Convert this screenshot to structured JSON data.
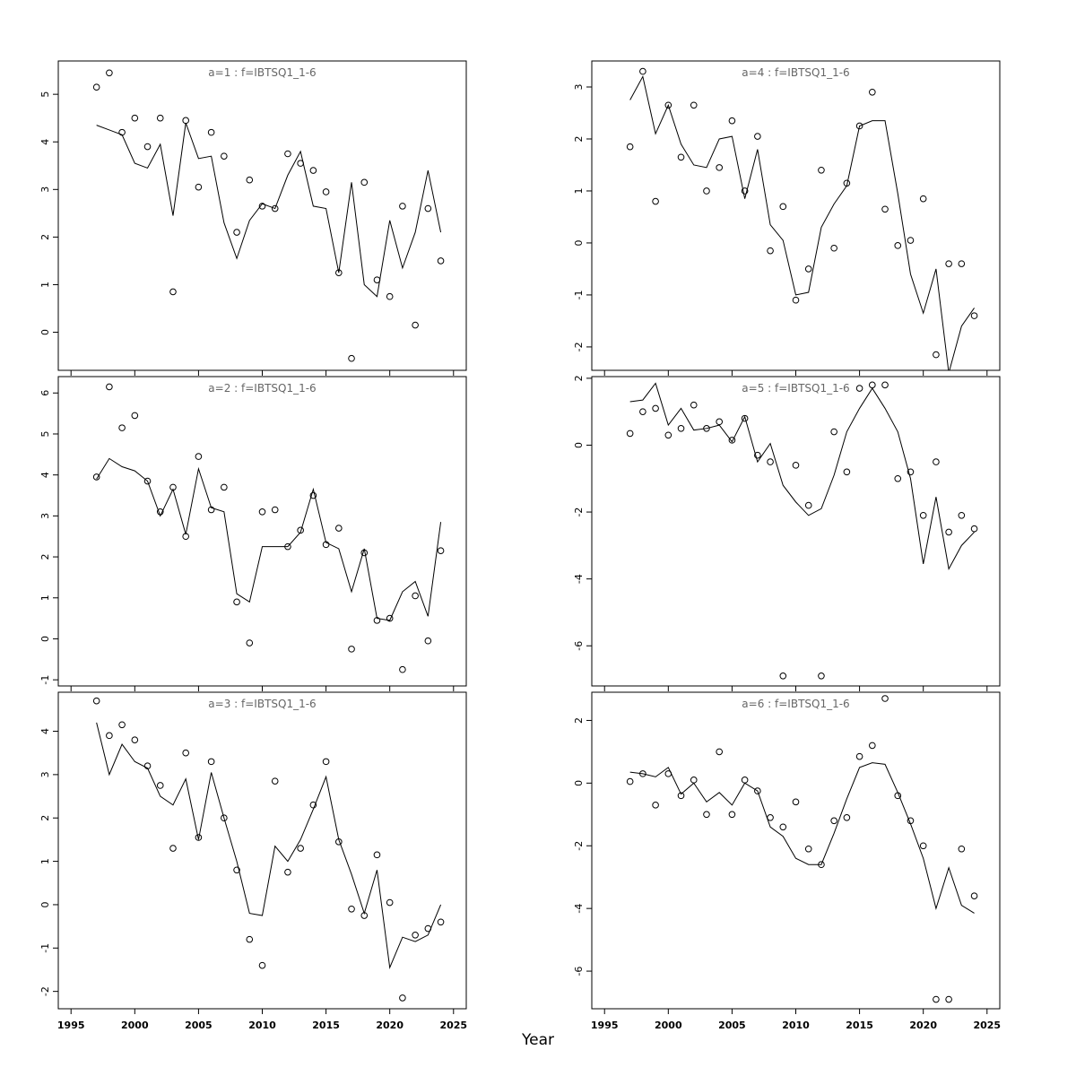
{
  "figure": {
    "xlabel": "Year",
    "background": "#ffffff",
    "line_color": "#000000",
    "point_color": "#000000",
    "title_color": "#666666",
    "axis_color": "#000000"
  },
  "chart_data": [
    {
      "type": "scatter",
      "title": "a=1  :  f=IBTSQ1_1-6",
      "xlabel": "Year",
      "xlim": [
        1994,
        2026
      ],
      "ylim": [
        -0.8,
        5.7
      ],
      "xticks": [
        1995,
        2000,
        2005,
        2010,
        2015,
        2020,
        2025
      ],
      "yticks": [
        0,
        1,
        2,
        3,
        4,
        5
      ],
      "x": [
        1997,
        1998,
        1999,
        2000,
        2001,
        2002,
        2003,
        2004,
        2005,
        2006,
        2007,
        2008,
        2009,
        2010,
        2011,
        2012,
        2013,
        2014,
        2015,
        2016,
        2017,
        2018,
        2019,
        2020,
        2021,
        2022,
        2023,
        2024
      ],
      "series": [
        {
          "name": "observed",
          "style": "points",
          "values": [
            5.15,
            5.45,
            4.2,
            4.5,
            3.9,
            4.5,
            0.85,
            4.45,
            3.05,
            4.2,
            3.7,
            2.1,
            3.2,
            2.65,
            2.6,
            3.75,
            3.55,
            3.4,
            2.95,
            1.25,
            -0.55,
            3.15,
            1.1,
            0.75,
            2.65,
            0.15,
            2.6,
            1.5
          ]
        },
        {
          "name": "fitted",
          "style": "line",
          "values": [
            4.35,
            4.25,
            4.15,
            3.55,
            3.45,
            3.95,
            2.45,
            4.4,
            3.65,
            3.7,
            2.3,
            1.55,
            2.35,
            2.7,
            2.6,
            3.3,
            3.8,
            2.65,
            2.6,
            1.25,
            3.15,
            1.0,
            0.75,
            2.35,
            1.35,
            2.1,
            3.4,
            2.1
          ]
        }
      ]
    },
    {
      "type": "scatter",
      "title": "a=2  :  f=IBTSQ1_1-6",
      "xlabel": "Year",
      "xlim": [
        1994,
        2026
      ],
      "ylim": [
        -1.15,
        6.4
      ],
      "xticks": [
        1995,
        2000,
        2005,
        2010,
        2015,
        2020,
        2025
      ],
      "yticks": [
        -1,
        0,
        1,
        2,
        3,
        4,
        5,
        6
      ],
      "x": [
        1997,
        1998,
        1999,
        2000,
        2001,
        2002,
        2003,
        2004,
        2005,
        2006,
        2007,
        2008,
        2009,
        2010,
        2011,
        2012,
        2013,
        2014,
        2015,
        2016,
        2017,
        2018,
        2019,
        2020,
        2021,
        2022,
        2023,
        2024
      ],
      "series": [
        {
          "name": "observed",
          "style": "points",
          "values": [
            3.95,
            6.15,
            5.15,
            5.45,
            3.85,
            3.1,
            3.7,
            2.5,
            4.45,
            3.15,
            3.7,
            0.9,
            -0.1,
            3.1,
            3.15,
            2.25,
            2.65,
            3.5,
            2.3,
            2.7,
            -0.25,
            2.1,
            0.45,
            0.5,
            -0.75,
            1.05,
            -0.05,
            2.15
          ]
        },
        {
          "name": "fitted",
          "style": "line",
          "values": [
            3.9,
            4.4,
            4.2,
            4.1,
            3.85,
            3.0,
            3.65,
            2.55,
            4.15,
            3.2,
            3.1,
            1.1,
            0.9,
            2.25,
            2.25,
            2.25,
            2.6,
            3.65,
            2.35,
            2.2,
            1.15,
            2.2,
            0.5,
            0.45,
            1.15,
            1.4,
            0.55,
            2.85
          ]
        }
      ]
    },
    {
      "type": "scatter",
      "title": "a=3  :  f=IBTSQ1_1-6",
      "xlabel": "Year",
      "xlim": [
        1994,
        2026
      ],
      "ylim": [
        -2.4,
        4.9
      ],
      "xticks": [
        1995,
        2000,
        2005,
        2010,
        2015,
        2020,
        2025
      ],
      "yticks": [
        -2,
        -1,
        0,
        1,
        2,
        3,
        4
      ],
      "x": [
        1997,
        1998,
        1999,
        2000,
        2001,
        2002,
        2003,
        2004,
        2005,
        2006,
        2007,
        2008,
        2009,
        2010,
        2011,
        2012,
        2013,
        2014,
        2015,
        2016,
        2017,
        2018,
        2019,
        2020,
        2021,
        2022,
        2023,
        2024
      ],
      "series": [
        {
          "name": "observed",
          "style": "points",
          "values": [
            4.7,
            3.9,
            4.15,
            3.8,
            3.2,
            2.75,
            1.3,
            3.5,
            1.55,
            3.3,
            2.0,
            0.8,
            -0.8,
            -1.4,
            2.85,
            0.75,
            1.3,
            2.3,
            3.3,
            1.45,
            -0.1,
            -0.25,
            1.15,
            0.05,
            -2.15,
            -0.7,
            -0.55,
            -0.4
          ]
        },
        {
          "name": "fitted",
          "style": "line",
          "values": [
            4.2,
            3.0,
            3.7,
            3.3,
            3.15,
            2.5,
            2.3,
            2.9,
            1.5,
            3.05,
            2.0,
            1.0,
            -0.2,
            -0.25,
            1.35,
            1.0,
            1.5,
            2.2,
            2.95,
            1.5,
            0.7,
            -0.2,
            0.8,
            -1.45,
            -0.75,
            -0.85,
            -0.7,
            0.0
          ]
        }
      ]
    },
    {
      "type": "scatter",
      "title": "a=4  :  f=IBTSQ1_1-6",
      "xlabel": "Year",
      "xlim": [
        1994,
        2026
      ],
      "ylim": [
        -2.45,
        3.5
      ],
      "xticks": [
        1995,
        2000,
        2005,
        2010,
        2015,
        2020,
        2025
      ],
      "yticks": [
        -2,
        -1,
        0,
        1,
        2,
        3
      ],
      "x": [
        1997,
        1998,
        1999,
        2000,
        2001,
        2002,
        2003,
        2004,
        2005,
        2006,
        2007,
        2008,
        2009,
        2010,
        2011,
        2012,
        2013,
        2014,
        2015,
        2016,
        2017,
        2018,
        2019,
        2020,
        2021,
        2022,
        2023,
        2024
      ],
      "series": [
        {
          "name": "observed",
          "style": "points",
          "values": [
            1.85,
            3.3,
            0.8,
            2.65,
            1.65,
            2.65,
            1.0,
            1.45,
            2.35,
            1.0,
            2.05,
            -0.15,
            0.7,
            -1.1,
            -0.5,
            1.4,
            -0.1,
            1.15,
            2.25,
            2.9,
            0.65,
            -0.05,
            0.05,
            0.85,
            -2.15,
            -0.4,
            -0.4,
            -1.4
          ]
        },
        {
          "name": "fitted",
          "style": "line",
          "values": [
            2.75,
            3.2,
            2.1,
            2.65,
            1.9,
            1.5,
            1.45,
            2.0,
            2.05,
            0.85,
            1.8,
            0.35,
            0.05,
            -1.0,
            -0.95,
            0.3,
            0.75,
            1.1,
            2.25,
            2.35,
            2.35,
            0.95,
            -0.6,
            -1.35,
            -0.5,
            -2.5,
            -1.6,
            -1.25
          ]
        }
      ]
    },
    {
      "type": "scatter",
      "title": "a=5  :  f=IBTSQ1_1-6",
      "xlabel": "Year",
      "xlim": [
        1994,
        2026
      ],
      "ylim": [
        -7.2,
        2.05
      ],
      "xticks": [
        1995,
        2000,
        2005,
        2010,
        2015,
        2020,
        2025
      ],
      "yticks": [
        -6,
        -4,
        -2,
        0,
        2
      ],
      "x": [
        1997,
        1998,
        1999,
        2000,
        2001,
        2002,
        2003,
        2004,
        2005,
        2006,
        2007,
        2008,
        2009,
        2010,
        2011,
        2012,
        2013,
        2014,
        2015,
        2016,
        2017,
        2018,
        2019,
        2020,
        2021,
        2022,
        2023,
        2024
      ],
      "series": [
        {
          "name": "observed",
          "style": "points",
          "values": [
            0.35,
            1.0,
            1.1,
            0.3,
            0.5,
            1.2,
            0.5,
            0.7,
            0.15,
            0.8,
            -0.3,
            -0.5,
            -6.9,
            -0.6,
            -1.8,
            -6.9,
            0.4,
            -0.8,
            1.7,
            1.8,
            1.8,
            -1.0,
            -0.8,
            -2.1,
            -0.5,
            -2.6,
            -2.1,
            -2.5
          ]
        },
        {
          "name": "fitted",
          "style": "line",
          "values": [
            1.3,
            1.35,
            1.85,
            0.6,
            1.1,
            0.45,
            0.5,
            0.6,
            0.1,
            0.85,
            -0.5,
            0.05,
            -1.2,
            -1.7,
            -2.1,
            -1.9,
            -0.9,
            0.4,
            1.1,
            1.7,
            1.1,
            0.4,
            -1.0,
            -3.55,
            -1.55,
            -3.7,
            -3.0,
            -2.6
          ]
        }
      ]
    },
    {
      "type": "scatter",
      "title": "a=6  :  f=IBTSQ1_1-6",
      "xlabel": "Year",
      "xlim": [
        1994,
        2026
      ],
      "ylim": [
        -7.2,
        2.9
      ],
      "xticks": [
        1995,
        2000,
        2005,
        2010,
        2015,
        2020,
        2025
      ],
      "yticks": [
        -6,
        -4,
        -2,
        0,
        2
      ],
      "x": [
        1997,
        1998,
        1999,
        2000,
        2001,
        2002,
        2003,
        2004,
        2005,
        2006,
        2007,
        2008,
        2009,
        2010,
        2011,
        2012,
        2013,
        2014,
        2015,
        2016,
        2017,
        2018,
        2019,
        2020,
        2021,
        2022,
        2023,
        2024
      ],
      "series": [
        {
          "name": "observed",
          "style": "points",
          "values": [
            0.05,
            0.3,
            -0.7,
            0.3,
            -0.4,
            0.1,
            -1.0,
            1.0,
            -1.0,
            0.1,
            -0.25,
            -1.1,
            -1.4,
            -0.6,
            -2.1,
            -2.6,
            -1.2,
            -1.1,
            0.85,
            1.2,
            2.7,
            -0.4,
            -1.2,
            -2.0,
            -6.9,
            -6.9,
            -2.1,
            -3.6
          ]
        },
        {
          "name": "fitted",
          "style": "line",
          "values": [
            0.35,
            0.3,
            0.2,
            0.5,
            -0.35,
            0.0,
            -0.6,
            -0.3,
            -0.7,
            0.0,
            -0.25,
            -1.4,
            -1.7,
            -2.4,
            -2.6,
            -2.6,
            -1.6,
            -0.5,
            0.5,
            0.65,
            0.6,
            -0.3,
            -1.3,
            -2.4,
            -4.0,
            -2.7,
            -3.9,
            -4.15
          ]
        }
      ]
    }
  ]
}
